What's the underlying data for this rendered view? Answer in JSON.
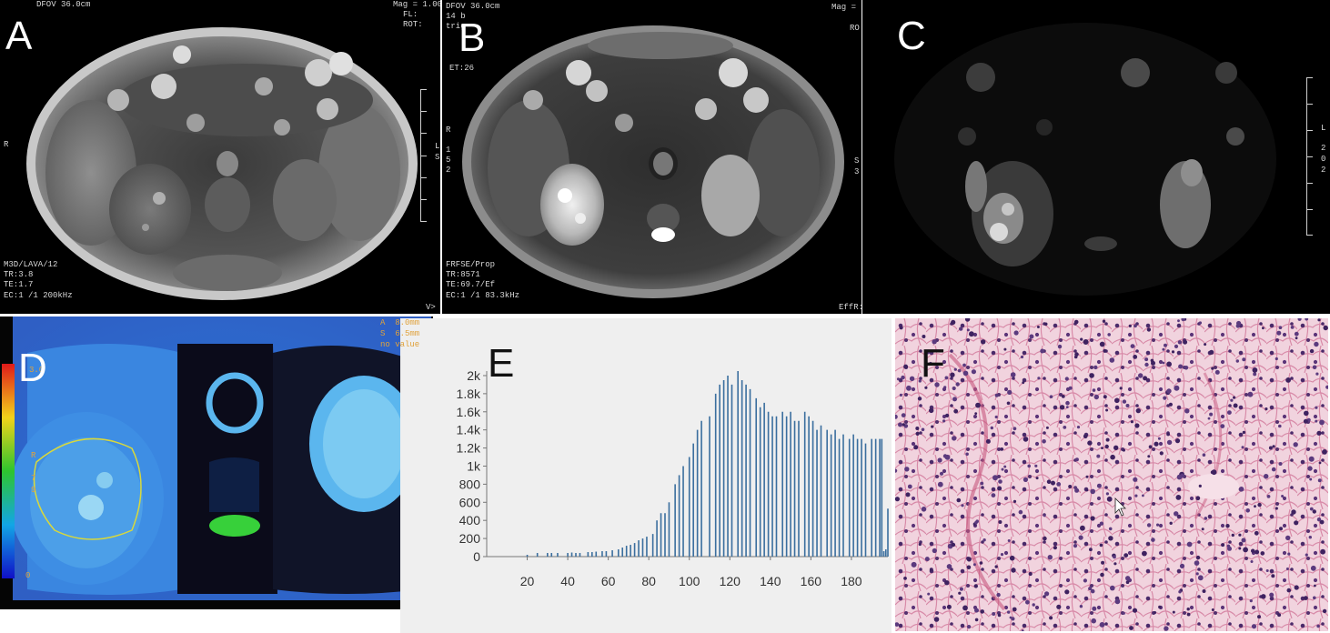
{
  "panels": {
    "A": {
      "label": "A",
      "overlays": {
        "top_left": "DFOV 36.0cm",
        "top_right": [
          "Mag = 1.00",
          "FL:",
          "ROT:"
        ],
        "side_left": "R",
        "side_right": [
          "L",
          "S"
        ],
        "bottom_left": [
          "M3D/LAVA/12",
          "TR:3.8",
          "TE:1.7",
          "EC:1 /1 200kHz"
        ],
        "bottom_right": "V>"
      }
    },
    "B": {
      "label": "B",
      "overlays": {
        "top_left": [
          "DFOV 36.0cm",
          "14 b",
          "trig"
        ],
        "et": "ET:26",
        "top_right": [
          "Mag =",
          "RO"
        ],
        "side_left": [
          "R",
          "1",
          "5",
          "2"
        ],
        "side_right": [
          "S",
          "3"
        ],
        "bottom_left": [
          "FRFSE/Prop",
          "TR:8571",
          "TE:69.7/Ef",
          "EC:1 /1 83.3kHz"
        ],
        "bottom_right": "EffR:"
      }
    },
    "C": {
      "label": "C",
      "overlays": {
        "side_right": [
          "L",
          "2",
          "0",
          "2"
        ]
      }
    },
    "D": {
      "label": "D",
      "overlays": {
        "top_right": [
          "A  8.0mm",
          "S  6.5mm",
          "no value"
        ],
        "scale_top": "3.0",
        "scale_bottom": "0",
        "side_letters": [
          "R",
          "7",
          "9"
        ]
      }
    },
    "E": {
      "label": "E",
      "chart_data": {
        "type": "bar",
        "title": "",
        "xlabel": "",
        "ylabel": "",
        "x_ticks": [
          20,
          40,
          60,
          80,
          100,
          120,
          140,
          160,
          180
        ],
        "y_ticks": [
          "0",
          "200",
          "400",
          "600",
          "800",
          "1k",
          "1.2k",
          "1.4k",
          "1.6k",
          "1.8k",
          "2k"
        ],
        "xlim": [
          0,
          198
        ],
        "ylim": [
          0,
          2050
        ],
        "grid": false,
        "color": "#3a6e9e",
        "x": [
          20,
          25,
          30,
          32,
          35,
          40,
          42,
          44,
          46,
          50,
          52,
          54,
          57,
          59,
          62,
          65,
          67,
          69,
          71,
          73,
          75,
          77,
          79,
          82,
          84,
          86,
          88,
          90,
          93,
          95,
          97,
          100,
          102,
          104,
          106,
          110,
          113,
          115,
          117,
          119,
          121,
          124,
          126,
          128,
          130,
          133,
          135,
          137,
          139,
          141,
          143,
          146,
          148,
          150,
          152,
          154,
          157,
          159,
          161,
          163,
          165,
          168,
          170,
          172,
          174,
          176,
          179,
          181,
          183,
          185,
          187,
          190,
          192,
          194,
          195,
          196,
          197,
          198
        ],
        "values": [
          20,
          40,
          40,
          40,
          40,
          40,
          45,
          40,
          40,
          50,
          50,
          55,
          60,
          60,
          70,
          80,
          100,
          120,
          130,
          150,
          180,
          200,
          220,
          250,
          400,
          480,
          480,
          600,
          800,
          900,
          1000,
          1100,
          1250,
          1400,
          1500,
          1550,
          1800,
          1900,
          1950,
          2000,
          1900,
          2050,
          1950,
          1900,
          1850,
          1750,
          1650,
          1700,
          1600,
          1550,
          1550,
          1600,
          1550,
          1600,
          1500,
          1500,
          1600,
          1550,
          1500,
          1400,
          1450,
          1400,
          1350,
          1400,
          1300,
          1350,
          1300,
          1350,
          1300,
          1300,
          1250,
          1300,
          1300,
          1300,
          1300,
          60,
          80,
          530
        ]
      }
    },
    "F": {
      "label": "F"
    }
  }
}
